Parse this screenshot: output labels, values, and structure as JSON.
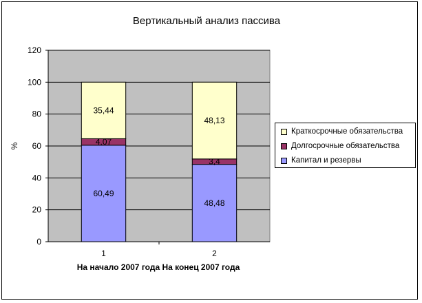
{
  "chart_data": {
    "type": "bar",
    "stacked": true,
    "title": "Вертикальный анализ пассива",
    "xlabel": "На начало 2007 года На конец 2007 года",
    "ylabel": "%",
    "categories": [
      "1",
      "2"
    ],
    "ylim": [
      0,
      120
    ],
    "yticks": [
      "0",
      "20",
      "40",
      "60",
      "80",
      "100",
      "120"
    ],
    "series": [
      {
        "name": "Капитал и резервы",
        "values": [
          60.49,
          48.48
        ],
        "labels": [
          "60,49",
          "48,48"
        ],
        "color": "#9999ff"
      },
      {
        "name": "Долгосрочные обязательства",
        "values": [
          4.07,
          3.4
        ],
        "labels": [
          "4,07",
          "3,4"
        ],
        "color": "#993366"
      },
      {
        "name": "Краткосрочные обязательства",
        "values": [
          35.44,
          48.13
        ],
        "labels": [
          "35,44",
          "48,13"
        ],
        "color": "#ffffcc"
      }
    ],
    "legend_order": [
      "Краткосрочные обязательства",
      "Долгосрочные обязательства",
      "Капитал и резервы"
    ],
    "plot_background": "#c0c0c0",
    "grid": true,
    "legend_position": "right"
  }
}
